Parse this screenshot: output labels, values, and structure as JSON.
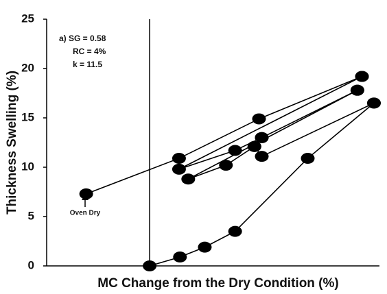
{
  "chart_data": {
    "type": "line",
    "x_label": "MC Change from the Dry Condition (%)",
    "y_label": "Thickness Swelling (%)",
    "annotations": [
      "a) SG = 0.58",
      "RC = 4%",
      "k = 11.5",
      "Oven Dry"
    ],
    "xlim": [
      -11.2,
      25
    ],
    "ylim": [
      0,
      25
    ],
    "yticks": [
      0,
      5,
      10,
      15,
      20,
      25
    ],
    "reference_x": 0,
    "color": "#000000",
    "series": [
      {
        "x": [
          -6.9,
          3.2,
          11.9,
          23.1
        ],
        "values": [
          7.3,
          10.9,
          14.9,
          19.2
        ]
      },
      {
        "x": [
          23.1,
          3.2,
          9.3,
          12.2,
          22.6
        ],
        "values": [
          19.2,
          9.8,
          11.7,
          13.0,
          17.8
        ]
      },
      {
        "x": [
          22.6,
          4.2,
          8.3,
          11.4,
          12.2
        ],
        "values": [
          17.8,
          8.8,
          10.2,
          12.1,
          13.0
        ]
      },
      {
        "x": [
          0,
          3.3,
          6.0,
          9.3,
          17.2,
          24.4
        ],
        "values": [
          0,
          0.9,
          1.9,
          3.5,
          10.9,
          16.5
        ]
      },
      {
        "x": [
          24.4,
          12.2,
          11.4
        ],
        "values": [
          16.5,
          11.1,
          12.1
        ]
      }
    ]
  }
}
